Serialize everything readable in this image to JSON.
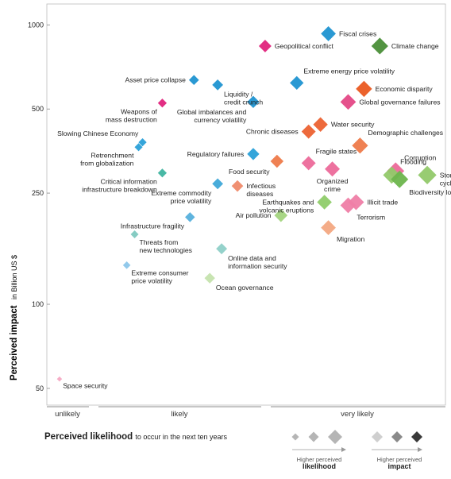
{
  "chart_data": {
    "type": "scatter",
    "ylabel_bold": "Perceived impact",
    "ylabel_sub": "in Billion US $",
    "xlabel_bold": "Perceived likelihood",
    "xlabel_sub": "to occur in the next ten years",
    "y_scale": "log",
    "ylim": [
      45,
      1150
    ],
    "y_ticks": [
      {
        "value": 1000,
        "label": "1000"
      },
      {
        "value": 500,
        "label": "500"
      },
      {
        "value": 250,
        "label": "250"
      },
      {
        "value": 100,
        "label": "100"
      },
      {
        "value": 50,
        "label": "50"
      }
    ],
    "likelihood_bands": [
      "unlikely",
      "likely",
      "very likely"
    ],
    "x_note": "likelihood on a 0-100 scale; 0-10 unlikely, 10-45 likely, 45-100 very likely",
    "points": [
      {
        "label": "Fiscal crises",
        "lines": [
          "Fiscal crises"
        ],
        "likelihood": 71,
        "impact": 930,
        "color": "#1f93d1",
        "label_pos": "right"
      },
      {
        "label": "Climate change",
        "lines": [
          "Climate change"
        ],
        "likelihood": 84,
        "impact": 840,
        "color": "#4a8e38",
        "label_pos": "right"
      },
      {
        "label": "Geopolitical conflict",
        "lines": [
          "Geopolitical conflict"
        ],
        "likelihood": 55,
        "impact": 840,
        "color": "#e0237c",
        "label_pos": "right"
      },
      {
        "label": "Asset price collapse",
        "lines": [
          "Asset price collapse"
        ],
        "likelihood": 37,
        "impact": 635,
        "color": "#1f93d1",
        "label_pos": "left"
      },
      {
        "label": "Liquidity / credit crunch",
        "lines": [
          "Liquidity /",
          "credit crunch"
        ],
        "likelihood": 43,
        "impact": 610,
        "color": "#1f93d1",
        "label_pos": "below-right"
      },
      {
        "label": "Extreme energy price volatility",
        "lines": [
          "Extreme energy price volatility"
        ],
        "likelihood": 63,
        "impact": 620,
        "color": "#1f93d1",
        "label_pos": "above-right"
      },
      {
        "label": "Economic disparity",
        "lines": [
          "Economic disparity"
        ],
        "likelihood": 80,
        "impact": 590,
        "color": "#ea5a21",
        "label_pos": "right"
      },
      {
        "label": "Weapons of mass destruction",
        "lines": [
          "Weapons of",
          "mass destruction"
        ],
        "likelihood": 29,
        "impact": 525,
        "color": "#e0237c",
        "label_pos": "below-left"
      },
      {
        "label": "Global imbalances and currency volatility",
        "lines": [
          "Global imbalances and",
          "currency volatility"
        ],
        "likelihood": 52,
        "impact": 530,
        "color": "#1f93d1",
        "label_pos": "below-left"
      },
      {
        "label": "Global governance failures",
        "lines": [
          "Global governance failures"
        ],
        "likelihood": 76,
        "impact": 530,
        "color": "#e44886",
        "label_pos": "right"
      },
      {
        "label": "Water security",
        "lines": [
          "Water security"
        ],
        "likelihood": 69,
        "impact": 440,
        "color": "#ec6232",
        "label_pos": "right"
      },
      {
        "label": "Chronic diseases",
        "lines": [
          "Chronic diseases"
        ],
        "likelihood": 66,
        "impact": 415,
        "color": "#ec6232",
        "label_pos": "left"
      },
      {
        "label": "Slowing Chinese Economy",
        "lines": [
          "Slowing Chinese Economy"
        ],
        "likelihood": 24,
        "impact": 380,
        "color": "#2aa0d8",
        "label_pos": "above-left"
      },
      {
        "label": "Retrenchment from globalization",
        "lines": [
          "Retrenchment",
          "from globalization"
        ],
        "likelihood": 23,
        "impact": 365,
        "color": "#2aa0d8",
        "label_pos": "below-left"
      },
      {
        "label": "Demographic challenges",
        "lines": [
          "Demographic challenges"
        ],
        "likelihood": 79,
        "impact": 370,
        "color": "#ee7a4a",
        "label_pos": "above-right"
      },
      {
        "label": "Regulatory failures",
        "lines": [
          "Regulatory failures"
        ],
        "likelihood": 52,
        "impact": 345,
        "color": "#2aa0d8",
        "label_pos": "left"
      },
      {
        "label": "Food security",
        "lines": [
          "Food security"
        ],
        "likelihood": 58,
        "impact": 325,
        "color": "#ee7a4a",
        "label_pos": "below-left"
      },
      {
        "label": "Fragile states",
        "lines": [
          "Fragile states"
        ],
        "likelihood": 66,
        "impact": 320,
        "color": "#ec6a9a",
        "label_pos": "above-right"
      },
      {
        "label": "Organized crime",
        "lines": [
          "Organized",
          "crime"
        ],
        "likelihood": 72,
        "impact": 305,
        "color": "#ec6a9a",
        "label_pos": "below"
      },
      {
        "label": "Corruption",
        "lines": [
          "Corruption"
        ],
        "likelihood": 88,
        "impact": 300,
        "color": "#ec6a9a",
        "label_pos": "above-right"
      },
      {
        "label": "Flooding",
        "lines": [
          "Flooding"
        ],
        "likelihood": 87,
        "impact": 290,
        "color": "#92c96a",
        "label_pos": "above-right"
      },
      {
        "label": "Storms and cyclones",
        "lines": [
          "Storms and",
          "cyclones"
        ],
        "likelihood": 96,
        "impact": 290,
        "color": "#92c96a",
        "label_pos": "right"
      },
      {
        "label": "Biodiversity loss",
        "lines": [
          "Biodiversity loss"
        ],
        "likelihood": 89,
        "impact": 280,
        "color": "#6db54d",
        "label_pos": "below-right"
      },
      {
        "label": "Critical information infrastructure breakdown",
        "lines": [
          "Critical information",
          "infrastructure breakdown"
        ],
        "likelihood": 29,
        "impact": 295,
        "color": "#3fb4a0",
        "label_pos": "below-left"
      },
      {
        "label": "Extreme commodity price volatility",
        "lines": [
          "Extreme commodity",
          "price volatility"
        ],
        "likelihood": 43,
        "impact": 270,
        "color": "#3fa8d8",
        "label_pos": "below-left"
      },
      {
        "label": "Infectious diseases",
        "lines": [
          "Infectious",
          "diseases"
        ],
        "likelihood": 48,
        "impact": 265,
        "color": "#ef8a6a",
        "label_pos": "right"
      },
      {
        "label": "Earthquakes and volcanic eruptions",
        "lines": [
          "Earthquakes and",
          "volcanic eruptions"
        ],
        "likelihood": 70,
        "impact": 232,
        "color": "#8fcc6a",
        "label_pos": "left"
      },
      {
        "label": "Illicit trade",
        "lines": [
          "Illicit trade"
        ],
        "likelihood": 78,
        "impact": 232,
        "color": "#ef7ea6",
        "label_pos": "right"
      },
      {
        "label": "Terrorism",
        "lines": [
          "Terrorism"
        ],
        "likelihood": 76,
        "impact": 226,
        "color": "#ef7ea6",
        "label_pos": "below-right"
      },
      {
        "label": "Air pollution",
        "lines": [
          "Air pollution"
        ],
        "likelihood": 59,
        "impact": 208,
        "color": "#a3d47e",
        "label_pos": "left"
      },
      {
        "label": "Infrastructure fragility",
        "lines": [
          "Infrastructure fragility"
        ],
        "likelihood": 36,
        "impact": 205,
        "color": "#56b0dc",
        "label_pos": "below-left"
      },
      {
        "label": "Migration",
        "lines": [
          "Migration"
        ],
        "likelihood": 71,
        "impact": 188,
        "color": "#f3a882",
        "label_pos": "below-right"
      },
      {
        "label": "Threats from new technologies",
        "lines": [
          "Threats from",
          "new technologies"
        ],
        "likelihood": 22,
        "impact": 178,
        "color": "#7fc9c0",
        "label_pos": "below-right"
      },
      {
        "label": "Online data and information security",
        "lines": [
          "Online data and",
          "information security"
        ],
        "likelihood": 44,
        "impact": 158,
        "color": "#8fd0c8",
        "label_pos": "below-right"
      },
      {
        "label": "Extreme consumer price volatility",
        "lines": [
          "Extreme consumer",
          "price volatility"
        ],
        "likelihood": 20,
        "impact": 138,
        "color": "#8cc6ea",
        "label_pos": "below-right"
      },
      {
        "label": "Ocean governance",
        "lines": [
          "Ocean governance"
        ],
        "likelihood": 41,
        "impact": 124,
        "color": "#c5e3ae",
        "label_pos": "below-right"
      },
      {
        "label": "Space security",
        "lines": [
          "Space security"
        ],
        "likelihood": 3,
        "impact": 54,
        "color": "#f6a9c3",
        "label_pos": "below-right"
      }
    ],
    "legend": {
      "likelihood_caption": "Higher perceived",
      "likelihood_bold": "likelihood",
      "impact_caption": "Higher perceived",
      "impact_bold": "impact",
      "impact_colors": [
        "#cfcfcf",
        "#8a8a8a",
        "#3a3a3a"
      ]
    }
  }
}
